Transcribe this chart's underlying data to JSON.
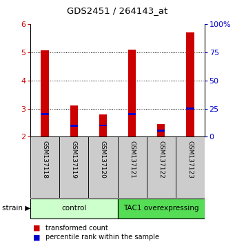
{
  "title": "GDS2451 / 264143_at",
  "samples": [
    "GSM137118",
    "GSM137119",
    "GSM137120",
    "GSM137121",
    "GSM137122",
    "GSM137123"
  ],
  "red_values": [
    5.07,
    3.1,
    2.78,
    5.1,
    2.45,
    5.72
  ],
  "blue_values": [
    2.8,
    2.38,
    2.4,
    2.8,
    2.22,
    3.0
  ],
  "ylim_left": [
    2,
    6
  ],
  "ylim_right": [
    0,
    100
  ],
  "right_ticks": [
    0,
    25,
    50,
    75,
    100
  ],
  "right_tick_labels": [
    "0",
    "25",
    "50",
    "75",
    "100%"
  ],
  "left_ticks": [
    2,
    3,
    4,
    5,
    6
  ],
  "groups": [
    {
      "label": "control",
      "indices": [
        0,
        1,
        2
      ],
      "color": "#ccffcc"
    },
    {
      "label": "TAC1 overexpressing",
      "indices": [
        3,
        4,
        5
      ],
      "color": "#55dd55"
    }
  ],
  "bar_width": 0.28,
  "red_color": "#cc0000",
  "blue_color": "#0000cc",
  "strain_label": "strain",
  "legend_red": "transformed count",
  "legend_blue": "percentile rank within the sample",
  "ylabel_left_color": "#cc0000",
  "ylabel_right_color": "#0000cc",
  "tick_area_bg": "#cccccc"
}
